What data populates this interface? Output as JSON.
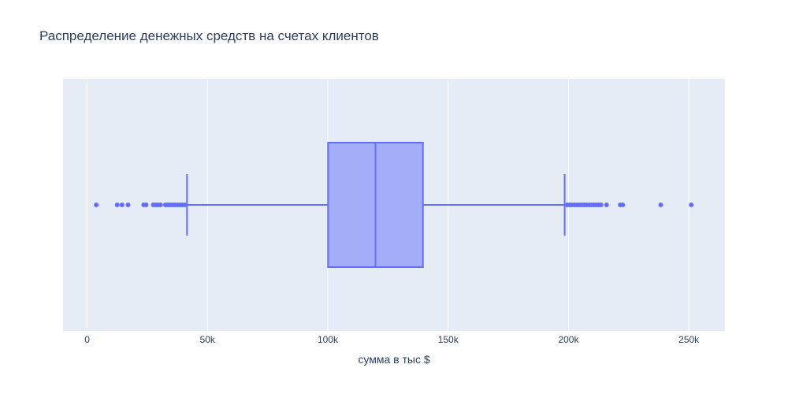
{
  "chart_data": {
    "type": "box",
    "title": "Распределение денежных средств на счетах клиентов",
    "xlabel": "сумма в тыс $",
    "ylabel": "",
    "orientation": "horizontal",
    "xlim": [
      -10000,
      265000
    ],
    "x_ticks": [
      {
        "value": 0,
        "label": "0"
      },
      {
        "value": 50000,
        "label": "50k"
      },
      {
        "value": 100000,
        "label": "100k"
      },
      {
        "value": 150000,
        "label": "150k"
      },
      {
        "value": 200000,
        "label": "200k"
      },
      {
        "value": 250000,
        "label": "250k"
      }
    ],
    "grid": true,
    "box": {
      "lower_fence": 41500,
      "q1": 100100,
      "median": 119800,
      "q3": 139500,
      "upper_fence": 198400
    },
    "outliers": [
      3800,
      12500,
      14500,
      17000,
      23500,
      24500,
      27500,
      28500,
      29500,
      30500,
      32500,
      33500,
      34500,
      35500,
      36500,
      37500,
      38500,
      39500,
      40500,
      199500,
      200500,
      201500,
      202500,
      203500,
      204500,
      205500,
      206500,
      207500,
      208500,
      209500,
      210500,
      211500,
      212500,
      213500,
      215800,
      221500,
      222500,
      238300,
      251000
    ],
    "colors": {
      "plot_bg": "#e5ecf6",
      "box_line": "#636efa",
      "box_fill": "rgba(99,110,250,0.5)",
      "grid": "#ffffff",
      "text": "#2a3f5f"
    }
  }
}
